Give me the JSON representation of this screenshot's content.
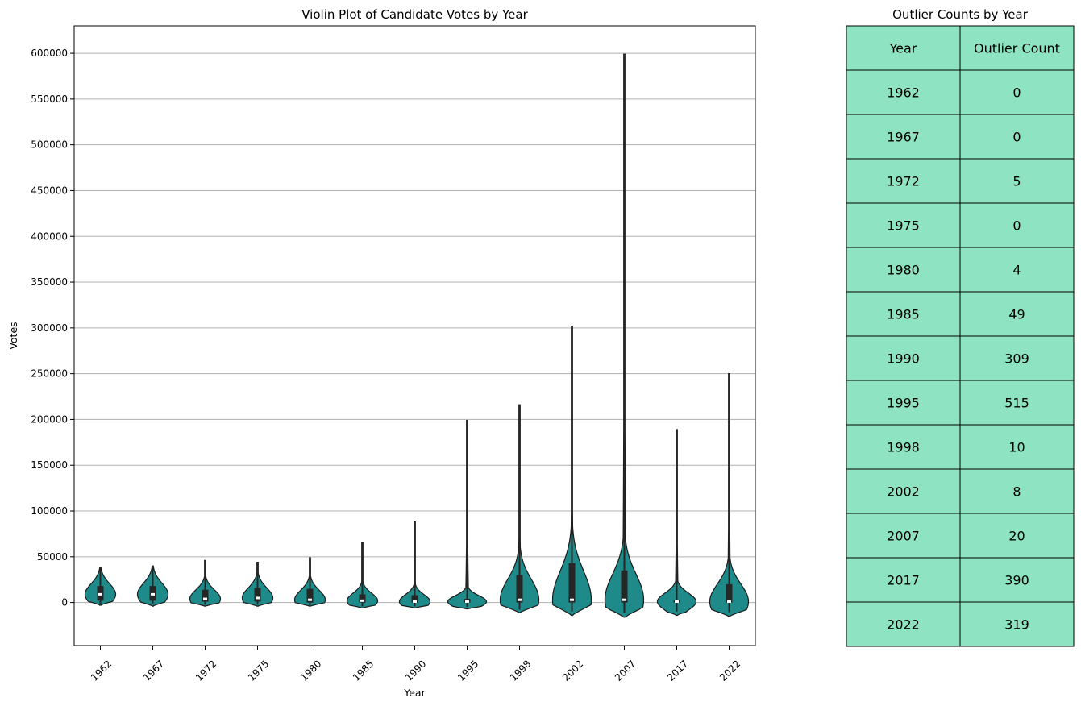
{
  "chart_data": [
    {
      "type": "violin",
      "title": "Violin Plot of Candidate Votes by Year",
      "xlabel": "Year",
      "ylabel": "Votes",
      "ylim": [
        -47000,
        630000
      ],
      "yticks": [
        0,
        50000,
        100000,
        150000,
        200000,
        250000,
        300000,
        350000,
        400000,
        450000,
        500000,
        550000,
        600000
      ],
      "grid": "y",
      "color": "#1f8a8a",
      "categories": [
        "1962",
        "1967",
        "1972",
        "1975",
        "1980",
        "1985",
        "1990",
        "1995",
        "1998",
        "2002",
        "2007",
        "2017",
        "2022"
      ],
      "violins": [
        {
          "year": "1962",
          "min": -3000,
          "max": 38000,
          "median": 9000,
          "q1": 2000,
          "q3": 18000,
          "tail_max": 38000
        },
        {
          "year": "1967",
          "min": -4000,
          "max": 40000,
          "median": 9000,
          "q1": 2000,
          "q3": 18000,
          "tail_max": 40000
        },
        {
          "year": "1972",
          "min": -4000,
          "max": 46000,
          "median": 4000,
          "q1": 1000,
          "q3": 14000,
          "tail_max": 46000
        },
        {
          "year": "1975",
          "min": -4000,
          "max": 44000,
          "median": 5000,
          "q1": 1000,
          "q3": 16000,
          "tail_max": 44000
        },
        {
          "year": "1980",
          "min": -4000,
          "max": 49000,
          "median": 3000,
          "q1": 0,
          "q3": 15000,
          "tail_max": 49000
        },
        {
          "year": "1985",
          "min": -6000,
          "max": 66000,
          "median": 2000,
          "q1": 0,
          "q3": 9000,
          "tail_max": 66000
        },
        {
          "year": "1990",
          "min": -6000,
          "max": 88000,
          "median": 1000,
          "q1": 0,
          "q3": 8000,
          "tail_max": 88000
        },
        {
          "year": "1995",
          "min": -7000,
          "max": 199000,
          "median": 1000,
          "q1": 0,
          "q3": 4000,
          "tail_max": 199000
        },
        {
          "year": "1998",
          "min": -11000,
          "max": 216000,
          "median": 3000,
          "q1": 0,
          "q3": 30000,
          "tail_max": 216000
        },
        {
          "year": "2002",
          "min": -14000,
          "max": 302000,
          "median": 3000,
          "q1": 0,
          "q3": 43000,
          "tail_max": 302000
        },
        {
          "year": "2007",
          "min": -16000,
          "max": 599000,
          "median": 3000,
          "q1": 0,
          "q3": 35000,
          "tail_max": 599000
        },
        {
          "year": "2017",
          "min": -14000,
          "max": 189000,
          "median": 1000,
          "q1": 0,
          "q3": 3000,
          "tail_max": 189000
        },
        {
          "year": "2022",
          "min": -15000,
          "max": 250000,
          "median": 1000,
          "q1": 0,
          "q3": 20000,
          "tail_max": 250000
        }
      ]
    },
    {
      "type": "table",
      "title": "Outlier Counts by Year",
      "columns": [
        "Year",
        "Outlier Count"
      ],
      "rows": [
        [
          "1962",
          "0"
        ],
        [
          "1967",
          "0"
        ],
        [
          "1972",
          "5"
        ],
        [
          "1975",
          "0"
        ],
        [
          "1980",
          "4"
        ],
        [
          "1985",
          "49"
        ],
        [
          "1990",
          "309"
        ],
        [
          "1995",
          "515"
        ],
        [
          "1998",
          "10"
        ],
        [
          "2002",
          "8"
        ],
        [
          "2007",
          "20"
        ],
        [
          "2017",
          "390"
        ],
        [
          "2022",
          "319"
        ]
      ],
      "cell_color": "#8ee4c2",
      "border_color": "#000000"
    }
  ]
}
